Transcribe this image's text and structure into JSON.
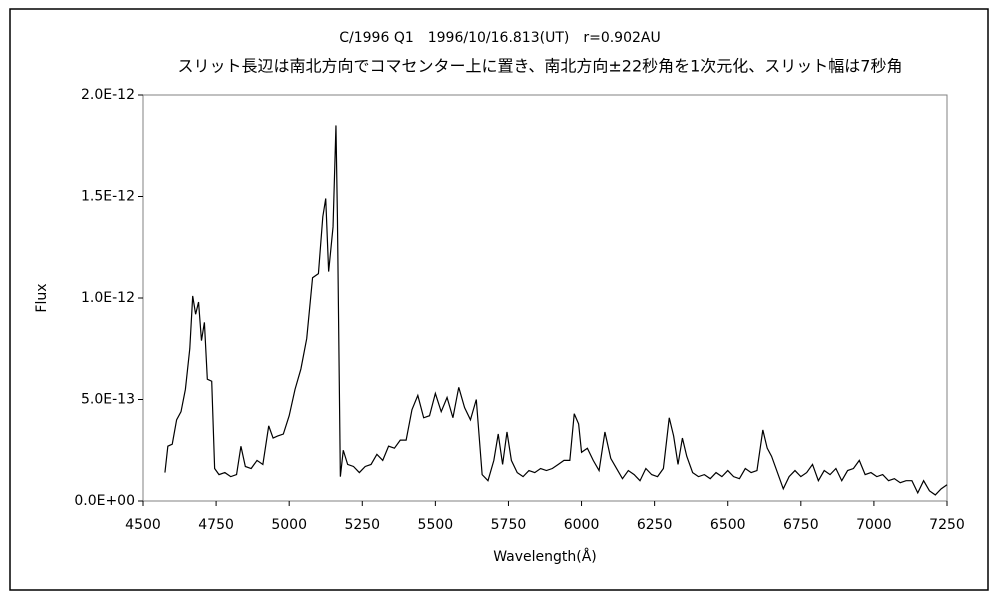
{
  "chart_data": {
    "type": "line",
    "title": "C/1996 Q1　1996/10/16.813(UT)　r=0.902AU",
    "subtitle": "スリット長辺は南北方向でコマセンター上に置き、南北方向±22秒角を1次元化、スリット幅は7秒角",
    "x_label": "Wavelength(Å)",
    "y_label": "Flux",
    "x": [
      4575,
      4585,
      4600,
      4615,
      4630,
      4645,
      4660,
      4670,
      4680,
      4690,
      4700,
      4710,
      4720,
      4735,
      4745,
      4760,
      4780,
      4800,
      4820,
      4835,
      4850,
      4870,
      4890,
      4910,
      4930,
      4945,
      4960,
      4980,
      5000,
      5020,
      5040,
      5060,
      5080,
      5100,
      5115,
      5125,
      5135,
      5150,
      5160,
      5165,
      5175,
      5185,
      5200,
      5220,
      5240,
      5260,
      5280,
      5300,
      5320,
      5340,
      5360,
      5380,
      5400,
      5420,
      5440,
      5460,
      5480,
      5500,
      5520,
      5540,
      5560,
      5580,
      5600,
      5620,
      5640,
      5660,
      5680,
      5700,
      5715,
      5730,
      5745,
      5760,
      5780,
      5800,
      5820,
      5840,
      5860,
      5880,
      5900,
      5920,
      5940,
      5960,
      5975,
      5990,
      6000,
      6020,
      6040,
      6060,
      6080,
      6100,
      6120,
      6140,
      6160,
      6180,
      6200,
      6220,
      6240,
      6260,
      6280,
      6300,
      6315,
      6330,
      6345,
      6360,
      6380,
      6400,
      6420,
      6440,
      6460,
      6480,
      6500,
      6520,
      6540,
      6560,
      6580,
      6600,
      6620,
      6635,
      6650,
      6670,
      6690,
      6710,
      6730,
      6750,
      6770,
      6790,
      6810,
      6830,
      6850,
      6870,
      6890,
      6910,
      6930,
      6950,
      6970,
      6990,
      7010,
      7030,
      7050,
      7070,
      7090,
      7110,
      7130,
      7150,
      7170,
      7190,
      7210,
      7230,
      7250
    ],
    "series": [
      {
        "name": "Flux",
        "color": "#000000",
        "values": [
          1.4e-13,
          2.7e-13,
          2.8e-13,
          4e-13,
          4.4e-13,
          5.5e-13,
          7.5e-13,
          1.01e-12,
          9.2e-13,
          9.8e-13,
          7.9e-13,
          8.8e-13,
          6e-13,
          5.9e-13,
          1.6e-13,
          1.3e-13,
          1.4e-13,
          1.2e-13,
          1.3e-13,
          2.7e-13,
          1.7e-13,
          1.6e-13,
          2e-13,
          1.8e-13,
          3.7e-13,
          3.1e-13,
          3.2e-13,
          3.3e-13,
          4.2e-13,
          5.5e-13,
          6.5e-13,
          8e-13,
          1.1e-12,
          1.12e-12,
          1.4e-12,
          1.49e-12,
          1.13e-12,
          1.35e-12,
          1.85e-12,
          1.4e-12,
          1.2e-13,
          2.5e-13,
          1.8e-13,
          1.7e-13,
          1.4e-13,
          1.7e-13,
          1.8e-13,
          2.3e-13,
          2e-13,
          2.7e-13,
          2.6e-13,
          3e-13,
          3e-13,
          4.5e-13,
          5.2e-13,
          4.1e-13,
          4.2e-13,
          5.3e-13,
          4.4e-13,
          5.1e-13,
          4.1e-13,
          5.6e-13,
          4.6e-13,
          4e-13,
          5e-13,
          1.3e-13,
          1e-13,
          2e-13,
          3.3e-13,
          1.8e-13,
          3.4e-13,
          2e-13,
          1.4e-13,
          1.2e-13,
          1.5e-13,
          1.4e-13,
          1.6e-13,
          1.5e-13,
          1.6e-13,
          1.8e-13,
          2e-13,
          2e-13,
          4.3e-13,
          3.8e-13,
          2.4e-13,
          2.6e-13,
          2e-13,
          1.5e-13,
          3.4e-13,
          2.1e-13,
          1.6e-13,
          1.1e-13,
          1.5e-13,
          1.3e-13,
          1e-13,
          1.6e-13,
          1.3e-13,
          1.2e-13,
          1.6e-13,
          4.1e-13,
          3.2e-13,
          1.8e-13,
          3.1e-13,
          2.2e-13,
          1.4e-13,
          1.2e-13,
          1.3e-13,
          1.1e-13,
          1.4e-13,
          1.2e-13,
          1.5e-13,
          1.2e-13,
          1.1e-13,
          1.6e-13,
          1.4e-13,
          1.5e-13,
          3.5e-13,
          2.6e-13,
          2.2e-13,
          1.4e-13,
          6e-14,
          1.2e-13,
          1.5e-13,
          1.2e-13,
          1.4e-13,
          1.8e-13,
          1e-13,
          1.5e-13,
          1.3e-13,
          1.6e-13,
          1e-13,
          1.5e-13,
          1.6e-13,
          2e-13,
          1.3e-13,
          1.4e-13,
          1.2e-13,
          1.3e-13,
          1e-13,
          1.1e-13,
          9e-14,
          1e-13,
          1e-13,
          4e-14,
          1e-13,
          5e-14,
          3e-14,
          6e-14,
          8e-14
        ]
      }
    ],
    "xlim": [
      4500,
      7250
    ],
    "xticks": [
      4500,
      4750,
      5000,
      5250,
      5500,
      5750,
      6000,
      6250,
      6500,
      6750,
      7000,
      7250
    ],
    "ylim": [
      0,
      2e-12
    ],
    "yticks": [
      {
        "value": 0,
        "label": "0.0E+00"
      },
      {
        "value": 5e-13,
        "label": "5.0E-13"
      },
      {
        "value": 1e-12,
        "label": "1.0E-12"
      },
      {
        "value": 1.5e-12,
        "label": "1.5E-12"
      },
      {
        "value": 2e-12,
        "label": "2.0E-12"
      }
    ]
  }
}
